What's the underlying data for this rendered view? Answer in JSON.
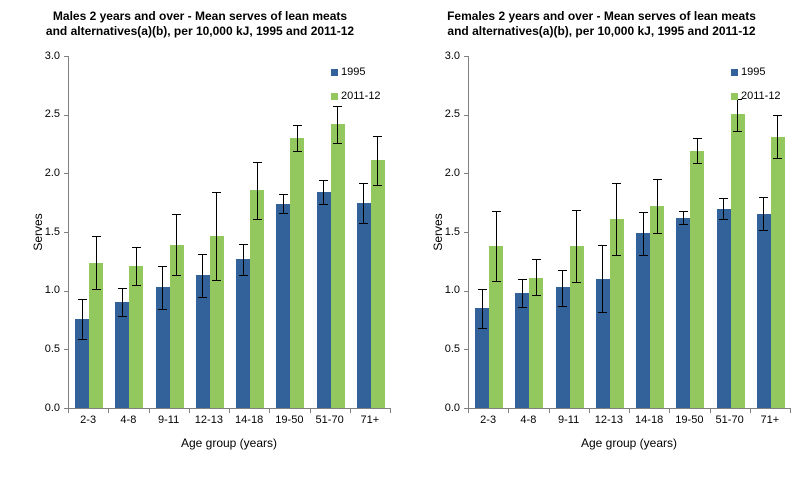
{
  "page": {
    "background": "#FFFFFF"
  },
  "styles": {
    "axis_color": "#808080",
    "error_bar_color": "#000000",
    "text_color": "#000000",
    "series_1995_color": "#33629A",
    "series_2011_color": "#93C85E"
  },
  "chart_data": [
    {
      "type": "bar",
      "title": "Males 2 years and over - Mean serves of lean meats and alternatives(a)(b), per 10,000 kJ, 1995 and 2011-12",
      "xlabel": "Age group (years)",
      "ylabel": "Serves",
      "ylim": [
        0,
        3
      ],
      "yticks": [
        "0.0",
        "0.5",
        "1.0",
        "1.5",
        "2.0",
        "2.5",
        "3.0"
      ],
      "grid": false,
      "legend_position": "top-right",
      "error_bars": true,
      "categories": [
        "2-3",
        "4-8",
        "9-11",
        "12-13",
        "14-18",
        "19-50",
        "51-70",
        "71+"
      ],
      "series": [
        {
          "name": "1995",
          "color": "#33629A",
          "values": [
            0.76,
            0.9,
            1.03,
            1.13,
            1.27,
            1.74,
            1.84,
            1.75
          ],
          "error_low": [
            0.59,
            0.78,
            0.84,
            0.95,
            1.13,
            1.66,
            1.74,
            1.58
          ],
          "error_high": [
            0.93,
            1.02,
            1.21,
            1.31,
            1.4,
            1.82,
            1.94,
            1.92
          ]
        },
        {
          "name": "2011-12",
          "color": "#93C85E",
          "values": [
            1.24,
            1.21,
            1.39,
            1.47,
            1.86,
            2.3,
            2.42,
            2.11
          ],
          "error_low": [
            1.01,
            1.05,
            1.13,
            1.09,
            1.61,
            2.19,
            2.26,
            1.9
          ],
          "error_high": [
            1.47,
            1.37,
            1.65,
            1.84,
            2.1,
            2.41,
            2.57,
            2.32
          ]
        }
      ]
    },
    {
      "type": "bar",
      "title": "Females 2 years and over - Mean serves of lean meats and alternatives(a)(b), per 10,000 kJ, 1995 and 2011-12",
      "xlabel": "Age group (years)",
      "ylabel": "Serves",
      "ylim": [
        0,
        3
      ],
      "yticks": [
        "0.0",
        "0.5",
        "1.0",
        "1.5",
        "2.0",
        "2.5",
        "3.0"
      ],
      "grid": false,
      "legend_position": "top-right",
      "error_bars": true,
      "categories": [
        "2-3",
        "4-8",
        "9-11",
        "12-13",
        "14-18",
        "19-50",
        "51-70",
        "71+"
      ],
      "series": [
        {
          "name": "1995",
          "color": "#33629A",
          "values": [
            0.85,
            0.98,
            1.03,
            1.1,
            1.49,
            1.62,
            1.7,
            1.65
          ],
          "error_low": [
            0.68,
            0.86,
            0.87,
            0.82,
            1.3,
            1.57,
            1.61,
            1.52
          ],
          "error_high": [
            1.01,
            1.1,
            1.18,
            1.39,
            1.67,
            1.68,
            1.79,
            1.8
          ]
        },
        {
          "name": "2011-12",
          "color": "#93C85E",
          "values": [
            1.38,
            1.11,
            1.38,
            1.61,
            1.72,
            2.19,
            2.51,
            2.31
          ],
          "error_low": [
            1.08,
            0.96,
            1.07,
            1.3,
            1.49,
            2.09,
            2.36,
            2.13
          ],
          "error_high": [
            1.68,
            1.27,
            1.69,
            1.92,
            1.95,
            2.3,
            2.63,
            2.5
          ]
        }
      ]
    }
  ]
}
